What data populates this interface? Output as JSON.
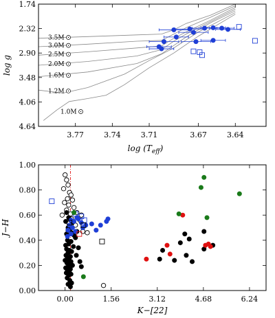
{
  "chart_data": [
    {
      "type": "scatter",
      "xlabel": "log (T_eff)",
      "ylabel": "log g",
      "xlim": [
        3.8,
        3.615
      ],
      "ylim": [
        4.64,
        1.74
      ],
      "xticks": [
        "3.77",
        "3.74",
        "3.71",
        "3.67",
        "3.64"
      ],
      "xtick_values": [
        3.77,
        3.74,
        3.71,
        3.67,
        3.64
      ],
      "yticks": [
        "1.74",
        "2.32",
        "2.90",
        "3.48",
        "4.06",
        "4.64"
      ],
      "ytick_values": [
        1.74,
        2.32,
        2.9,
        3.48,
        4.06,
        4.64
      ],
      "track_labels": [
        {
          "text": "3.5M",
          "logg": 2.53
        },
        {
          "text": "3.0M",
          "logg": 2.72
        },
        {
          "text": "2.5M",
          "logg": 2.93
        },
        {
          "text": "2.0M",
          "logg": 3.16
        },
        {
          "text": "1.6M",
          "logg": 3.43
        },
        {
          "text": "1.2M",
          "logg": 3.8
        },
        {
          "text": "1.0M",
          "logg": 4.29
        }
      ],
      "tracks": [
        {
          "label": "3.5M",
          "points": [
            [
              3.8,
              2.55
            ],
            [
              3.76,
              2.51
            ],
            [
              3.72,
              2.47
            ],
            [
              3.7,
              2.45
            ],
            [
              3.69,
              2.35
            ],
            [
              3.68,
              2.2
            ],
            [
              3.66,
              2.0
            ],
            [
              3.64,
              1.74
            ]
          ]
        },
        {
          "label": "3.0M",
          "points": [
            [
              3.8,
              2.75
            ],
            [
              3.76,
              2.69
            ],
            [
              3.72,
              2.62
            ],
            [
              3.7,
              2.6
            ],
            [
              3.69,
              2.45
            ],
            [
              3.68,
              2.3
            ],
            [
              3.66,
              2.05
            ],
            [
              3.64,
              1.78
            ]
          ]
        },
        {
          "label": "2.5M",
          "points": [
            [
              3.8,
              2.95
            ],
            [
              3.76,
              2.87
            ],
            [
              3.72,
              2.78
            ],
            [
              3.7,
              2.73
            ],
            [
              3.69,
              2.55
            ],
            [
              3.68,
              2.4
            ],
            [
              3.66,
              2.12
            ],
            [
              3.64,
              1.82
            ]
          ]
        },
        {
          "label": "2.0M",
          "points": [
            [
              3.8,
              3.19
            ],
            [
              3.76,
              3.1
            ],
            [
              3.72,
              2.97
            ],
            [
              3.7,
              2.82
            ],
            [
              3.69,
              2.62
            ],
            [
              3.68,
              2.45
            ],
            [
              3.66,
              2.15
            ],
            [
              3.64,
              1.86
            ]
          ]
        },
        {
          "label": "1.6M",
          "points": [
            [
              3.8,
              3.46
            ],
            [
              3.76,
              3.35
            ],
            [
              3.72,
              3.15
            ],
            [
              3.7,
              2.92
            ],
            [
              3.69,
              2.72
            ],
            [
              3.68,
              2.52
            ],
            [
              3.66,
              2.18
            ],
            [
              3.64,
              1.9
            ]
          ]
        },
        {
          "label": "1.2M",
          "points": [
            [
              3.8,
              3.78
            ],
            [
              3.78,
              3.85
            ],
            [
              3.76,
              3.72
            ],
            [
              3.73,
              3.4
            ],
            [
              3.71,
              3.08
            ],
            [
              3.69,
              2.78
            ],
            [
              3.67,
              2.4
            ],
            [
              3.64,
              1.94
            ]
          ]
        },
        {
          "label": "1.0M",
          "points": [
            [
              3.796,
              4.5
            ],
            [
              3.785,
              4.25
            ],
            [
              3.775,
              4.05
            ],
            [
              3.76,
              3.98
            ],
            [
              3.745,
              3.9
            ],
            [
              3.73,
              3.65
            ],
            [
              3.71,
              3.25
            ],
            [
              3.69,
              2.9
            ],
            [
              3.67,
              2.5
            ],
            [
              3.64,
              1.98
            ]
          ]
        }
      ],
      "series": [
        {
          "name": "filled",
          "color": "#1f3fd6",
          "marker": "circle-filled",
          "points": [
            [
              3.677,
              2.33
            ],
            [
              3.665,
              2.31
            ],
            [
              3.658,
              2.3
            ],
            [
              3.69,
              2.35
            ],
            [
              3.674,
              2.41
            ],
            [
              3.651,
              2.31
            ],
            [
              3.646,
              2.34
            ],
            [
              3.688,
              2.52
            ],
            [
              3.658,
              2.6
            ],
            [
              3.672,
              2.63
            ],
            [
              3.698,
              2.63
            ],
            [
              3.702,
              2.75
            ],
            [
              3.7,
              2.8
            ]
          ],
          "xerr": [
            0.012,
            0.01,
            0.01,
            0.012,
            0.012,
            0.01,
            0.01,
            0.01,
            0.01,
            0.012,
            0.012,
            0.01,
            0.01
          ]
        },
        {
          "name": "open-square",
          "color": "#1f3fd6",
          "marker": "square-open",
          "points": [
            [
              3.637,
              2.28
            ],
            [
              3.624,
              2.61
            ],
            [
              3.674,
              2.86
            ],
            [
              3.669,
              2.88
            ],
            [
              3.667,
              2.95
            ]
          ]
        }
      ]
    },
    {
      "type": "scatter",
      "xlabel": "K−[22]",
      "ylabel": "J−H",
      "xlim": [
        -0.9,
        6.8
      ],
      "ylim": [
        0.0,
        1.0
      ],
      "xticks": [
        "0.00",
        "1.56",
        "3.12",
        "4.68",
        "6.24"
      ],
      "xtick_values": [
        0.0,
        1.56,
        3.12,
        4.68,
        6.24
      ],
      "yticks": [
        "0.00",
        "0.20",
        "0.40",
        "0.60",
        "0.80",
        "1.00"
      ],
      "ytick_values": [
        0.0,
        0.2,
        0.4,
        0.6,
        0.8,
        1.0
      ],
      "vline_x": 0.18,
      "series": [
        {
          "name": "black",
          "color": "#000000",
          "marker": "circle-filled",
          "points": [
            [
              0.05,
              0.62
            ],
            [
              0.12,
              0.58
            ],
            [
              0.02,
              0.55
            ],
            [
              0.18,
              0.56
            ],
            [
              0.25,
              0.54
            ],
            [
              0.1,
              0.5
            ],
            [
              0.15,
              0.48
            ],
            [
              0.22,
              0.46
            ],
            [
              0.05,
              0.45
            ],
            [
              0.3,
              0.44
            ],
            [
              0.35,
              0.42
            ],
            [
              0.08,
              0.4
            ],
            [
              0.2,
              0.39
            ],
            [
              0.12,
              0.37
            ],
            [
              0.02,
              0.36
            ],
            [
              0.28,
              0.35
            ],
            [
              0.05,
              0.33
            ],
            [
              0.15,
              0.32
            ],
            [
              0.22,
              0.31
            ],
            [
              0.1,
              0.3
            ],
            [
              0.03,
              0.28
            ],
            [
              0.18,
              0.27
            ],
            [
              0.08,
              0.26
            ],
            [
              0.13,
              0.25
            ],
            [
              0.0,
              0.24
            ],
            [
              0.2,
              0.23
            ],
            [
              0.06,
              0.22
            ],
            [
              0.15,
              0.21
            ],
            [
              0.25,
              0.2
            ],
            [
              0.1,
              0.19
            ],
            [
              0.02,
              0.18
            ],
            [
              0.18,
              0.17
            ],
            [
              0.08,
              0.16
            ],
            [
              0.14,
              0.15
            ],
            [
              0.04,
              0.14
            ],
            [
              0.2,
              0.13
            ],
            [
              0.12,
              0.12
            ],
            [
              0.07,
              0.1
            ],
            [
              0.16,
              0.08
            ],
            [
              0.22,
              0.06
            ],
            [
              0.1,
              0.05
            ],
            [
              0.18,
              0.03
            ],
            [
              0.4,
              0.47
            ],
            [
              0.45,
              0.34
            ],
            [
              0.5,
              0.23
            ],
            [
              0.38,
              0.28
            ],
            [
              0.55,
              0.19
            ],
            [
              3.3,
              0.32
            ],
            [
              3.2,
              0.25
            ],
            [
              3.7,
              0.24
            ],
            [
              3.9,
              0.38
            ],
            [
              4.1,
              0.28
            ],
            [
              4.3,
              0.23
            ],
            [
              4.7,
              0.33
            ],
            [
              5.0,
              0.36
            ],
            [
              4.05,
              0.45
            ],
            [
              4.7,
              0.47
            ],
            [
              4.2,
              0.41
            ]
          ]
        },
        {
          "name": "blue",
          "color": "#1f3fd6",
          "marker": "circle-filled",
          "points": [
            [
              0.15,
              0.52
            ],
            [
              0.25,
              0.5
            ],
            [
              0.1,
              0.48
            ],
            [
              0.3,
              0.55
            ],
            [
              0.45,
              0.57
            ],
            [
              0.55,
              0.54
            ],
            [
              0.2,
              0.45
            ],
            [
              0.08,
              0.43
            ],
            [
              0.35,
              0.47
            ],
            [
              0.7,
              0.52
            ],
            [
              0.9,
              0.53
            ],
            [
              1.05,
              0.48
            ],
            [
              1.2,
              0.52
            ],
            [
              1.4,
              0.55
            ],
            [
              1.45,
              0.57
            ],
            [
              0.4,
              0.58
            ],
            [
              0.2,
              0.56
            ],
            [
              0.6,
              0.5
            ]
          ]
        },
        {
          "name": "green",
          "color": "#1a7a1a",
          "marker": "circle-filled",
          "points": [
            [
              4.6,
              0.82
            ],
            [
              4.7,
              0.9
            ],
            [
              5.9,
              0.77
            ],
            [
              3.85,
              0.61
            ],
            [
              4.8,
              0.58
            ],
            [
              0.62,
              0.11
            ],
            [
              0.3,
              0.62
            ]
          ]
        },
        {
          "name": "red",
          "color": "#e01010",
          "marker": "circle-filled",
          "points": [
            [
              2.75,
              0.25
            ],
            [
              3.45,
              0.36
            ],
            [
              3.55,
              0.29
            ],
            [
              3.98,
              0.6
            ],
            [
              4.75,
              0.36
            ],
            [
              4.85,
              0.37
            ],
            [
              4.92,
              0.35
            ]
          ]
        },
        {
          "name": "open-circle",
          "color": "#000000",
          "marker": "circle-open",
          "points": [
            [
              0.0,
              0.92
            ],
            [
              0.05,
              0.88
            ],
            [
              0.1,
              0.84
            ],
            [
              -0.05,
              0.81
            ],
            [
              0.15,
              0.78
            ],
            [
              0.2,
              0.76
            ],
            [
              0.08,
              0.73
            ],
            [
              -0.02,
              0.7
            ],
            [
              0.25,
              0.72
            ],
            [
              0.12,
              0.68
            ],
            [
              0.3,
              0.66
            ],
            [
              0.05,
              0.64
            ],
            [
              0.18,
              0.61
            ],
            [
              -0.1,
              0.6
            ],
            [
              0.22,
              0.57
            ],
            [
              0.4,
              0.62
            ],
            [
              0.55,
              0.6
            ],
            [
              0.35,
              0.52
            ],
            [
              0.6,
              0.47
            ],
            [
              0.75,
              0.46
            ],
            [
              1.3,
              0.04
            ],
            [
              0.1,
              0.48
            ],
            [
              0.5,
              0.56
            ]
          ]
        },
        {
          "name": "open-square-blue",
          "color": "#1f3fd6",
          "marker": "square-open",
          "points": [
            [
              -0.45,
              0.71
            ],
            [
              0.35,
              0.61
            ],
            [
              0.55,
              0.59
            ],
            [
              0.65,
              0.56
            ]
          ]
        },
        {
          "name": "open-square-black",
          "color": "#000000",
          "marker": "square-open",
          "points": [
            [
              1.25,
              0.39
            ],
            [
              0.62,
              0.52
            ],
            [
              0.15,
              0.54
            ]
          ]
        },
        {
          "name": "open-square-red",
          "color": "#e01010",
          "marker": "square-open",
          "points": [
            [
              0.48,
              0.45
            ]
          ]
        }
      ]
    }
  ]
}
